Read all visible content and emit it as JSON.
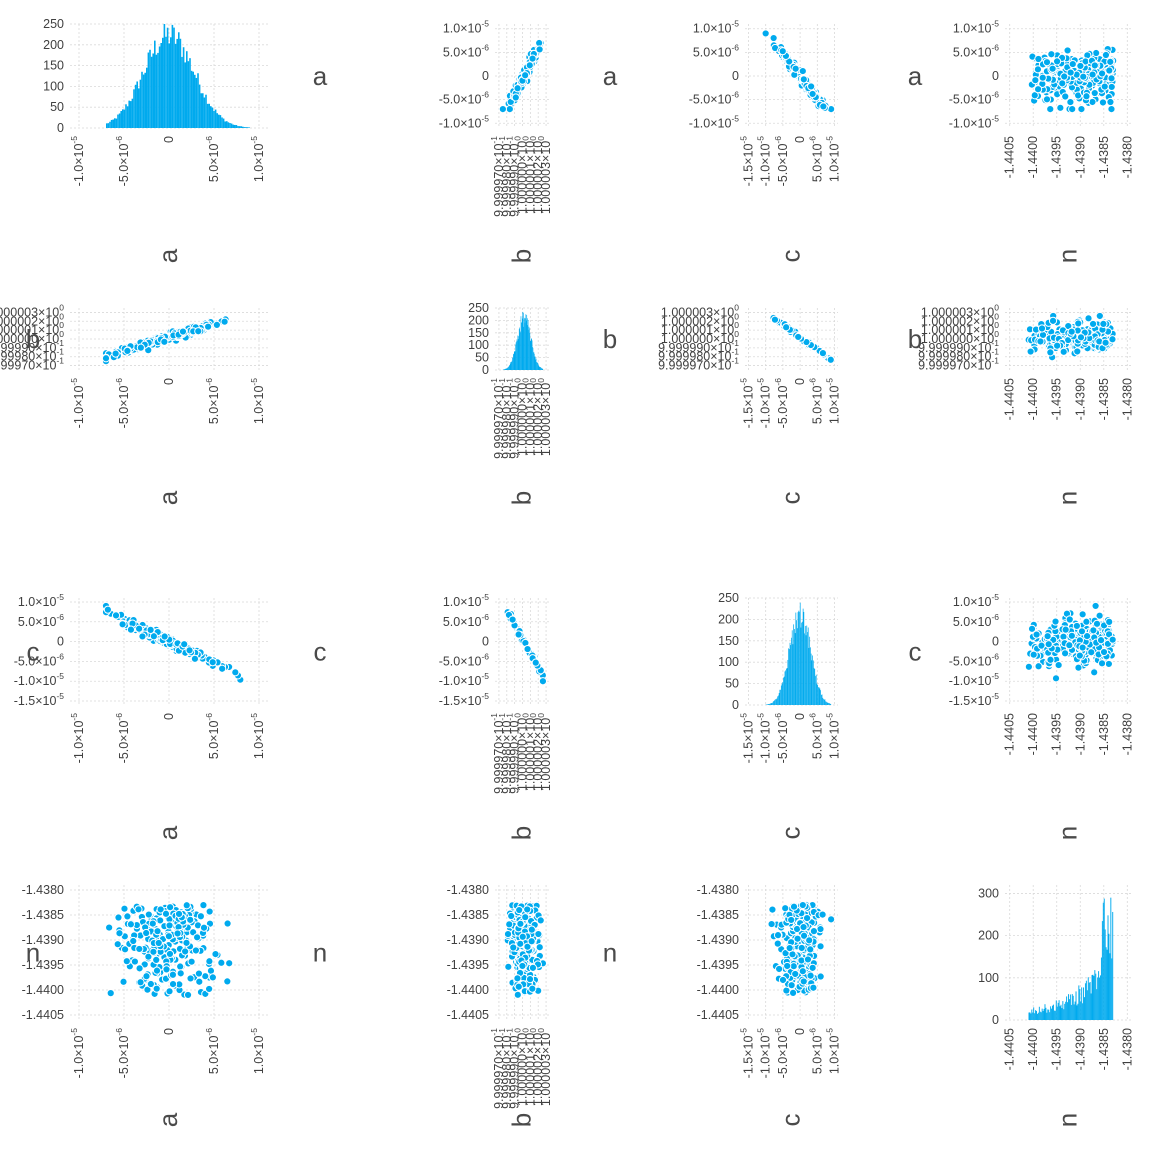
{
  "colors": {
    "series": "#00aaee",
    "marker_edge": "#ffffff",
    "grid": "#d9d9d9",
    "text": "#404040",
    "background": "#ffffff"
  },
  "variables": {
    "a": {
      "label": "a",
      "range": [
        -1.1e-05,
        1.1e-05
      ],
      "ticks": [
        {
          "v": -1e-05,
          "m": "-1.0×10",
          "e": "-5"
        },
        {
          "v": -5e-06,
          "m": "-5.0×10",
          "e": "-6"
        },
        {
          "v": 0,
          "m": "0",
          "e": ""
        },
        {
          "v": 5e-06,
          "m": "5.0×10",
          "e": "-6"
        },
        {
          "v": 1e-05,
          "m": "1.0×10",
          "e": "-5"
        }
      ]
    },
    "b": {
      "label": "b",
      "range": [
        0.9999965,
        1.0000035
      ],
      "ticks": [
        {
          "v": 0.999997,
          "m": "9.999970×10",
          "e": "-1"
        },
        {
          "v": 0.999998,
          "m": "9.999980×10",
          "e": "-1"
        },
        {
          "v": 0.999999,
          "m": "9.999990×10",
          "e": "-1"
        },
        {
          "v": 1.0,
          "m": "1.000000×10",
          "e": "0"
        },
        {
          "v": 1.000001,
          "m": "1.000001×10",
          "e": "0"
        },
        {
          "v": 1.000002,
          "m": "1.000002×10",
          "e": "0"
        },
        {
          "v": 1.000003,
          "m": "1.000003×10",
          "e": "0"
        }
      ]
    },
    "c": {
      "label": "c",
      "range": [
        -1.6e-05,
        1.1e-05
      ],
      "ticks": [
        {
          "v": -1.5e-05,
          "m": "-1.5×10",
          "e": "-5"
        },
        {
          "v": -1e-05,
          "m": "-1.0×10",
          "e": "-5"
        },
        {
          "v": -5e-06,
          "m": "-5.0×10",
          "e": "-6"
        },
        {
          "v": 0,
          "m": "0",
          "e": ""
        },
        {
          "v": 5e-06,
          "m": "5.0×10",
          "e": "-6"
        },
        {
          "v": 1e-05,
          "m": "1.0×10",
          "e": "-5"
        }
      ]
    },
    "n": {
      "label": "n",
      "range": [
        -1.4406,
        -1.4379
      ],
      "ticks": [
        {
          "v": -1.4405,
          "m": "-1.4405",
          "e": ""
        },
        {
          "v": -1.44,
          "m": "-1.4400",
          "e": ""
        },
        {
          "v": -1.4395,
          "m": "-1.4395",
          "e": ""
        },
        {
          "v": -1.439,
          "m": "-1.4390",
          "e": ""
        },
        {
          "v": -1.4385,
          "m": "-1.4385",
          "e": ""
        },
        {
          "v": -1.438,
          "m": "-1.4380",
          "e": ""
        }
      ]
    }
  },
  "order": [
    "a",
    "b",
    "c",
    "n"
  ],
  "chart_data": {
    "type": "scatter",
    "layout": "corner-pairs-plot",
    "grid": true,
    "legend": "none",
    "variables": [
      "a",
      "b",
      "c",
      "n"
    ],
    "diagonal": "histogram",
    "off_diagonal": "scatter",
    "histograms": {
      "a": {
        "ylim": [
          0,
          250
        ],
        "yticks": [
          0,
          50,
          100,
          150,
          200,
          250
        ],
        "center": 0,
        "spread": 2.8e-06,
        "peak": 240,
        "support": [
          -7e-06,
          9e-06
        ]
      },
      "b": {
        "ylim": [
          0,
          250
        ],
        "yticks": [
          0,
          50,
          100,
          150,
          200,
          250
        ],
        "center": 1.0000002,
        "spread": 8.5e-07,
        "peak": 225,
        "support": [
          0.9999975,
          1.0000026
        ]
      },
      "c": {
        "ylim": [
          0,
          250
        ],
        "yticks": [
          0,
          50,
          100,
          150,
          200,
          250
        ],
        "center": 0,
        "spread": 3e-06,
        "peak": 230,
        "support": [
          -1e-05,
          9e-06
        ]
      },
      "n": {
        "ylim": [
          0,
          320
        ],
        "yticks": [
          0,
          100,
          200,
          300
        ],
        "support": [
          -1.4401,
          -1.4383
        ],
        "peak": 290
      }
    },
    "correlations": {
      "a|b": 0.97,
      "a|c": -0.98,
      "b|c": -0.995,
      "a|n": 0.05,
      "b|n": 0.0,
      "c|n": 0.0
    }
  }
}
